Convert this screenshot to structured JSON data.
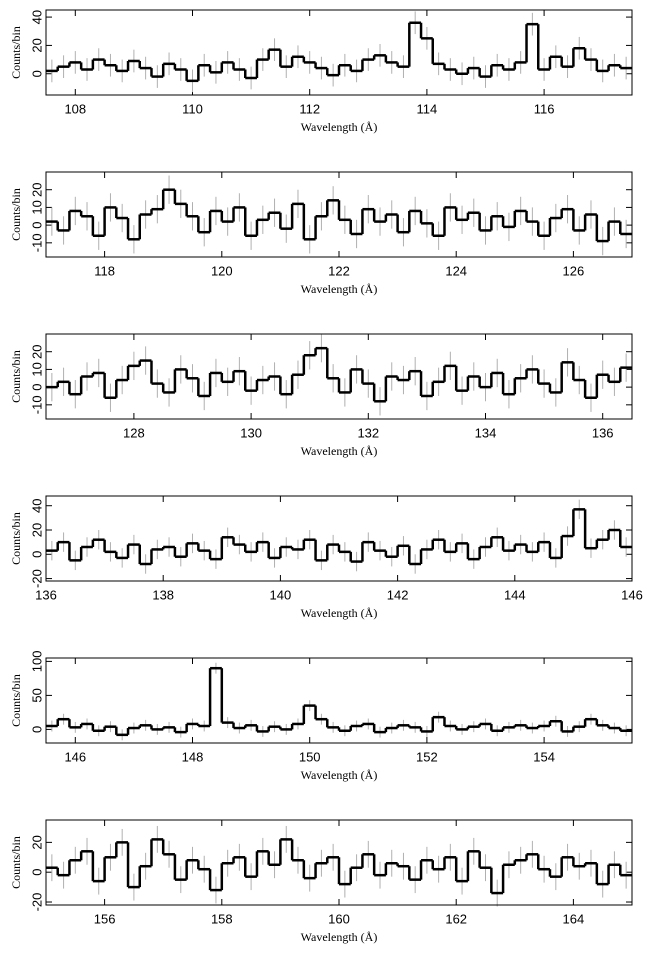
{
  "chart_data": [
    {
      "type": "step",
      "xlabel": "Wavelength (Å)",
      "ylabel": "Counts/bin",
      "color": "#000000",
      "error_color": "#b0b0b0",
      "xlim": [
        107.5,
        117.5
      ],
      "ylim": [
        -15,
        45
      ],
      "xticks": [
        108,
        110,
        112,
        114,
        116
      ],
      "yticks": [
        0,
        20,
        40
      ],
      "error": 8,
      "x": [
        107.5,
        107.7,
        107.9,
        108.1,
        108.3,
        108.5,
        108.7,
        108.9,
        109.1,
        109.3,
        109.5,
        109.7,
        109.9,
        110.1,
        110.3,
        110.5,
        110.7,
        110.9,
        111.1,
        111.3,
        111.5,
        111.7,
        111.9,
        112.1,
        112.3,
        112.5,
        112.7,
        112.9,
        113.1,
        113.3,
        113.5,
        113.7,
        113.9,
        114.1,
        114.3,
        114.5,
        114.7,
        114.9,
        115.1,
        115.3,
        115.5,
        115.7,
        115.9,
        116.1,
        116.3,
        116.5,
        116.7,
        116.9,
        117.1,
        117.3
      ],
      "values": [
        2,
        5,
        8,
        3,
        10,
        6,
        2,
        9,
        4,
        -2,
        7,
        3,
        -5,
        6,
        1,
        8,
        3,
        -3,
        10,
        17,
        5,
        12,
        8,
        4,
        -1,
        6,
        2,
        10,
        13,
        8,
        5,
        36,
        25,
        7,
        3,
        0,
        4,
        -2,
        6,
        3,
        8,
        35,
        3,
        12,
        5,
        18,
        10,
        2,
        6,
        4
      ]
    },
    {
      "type": "step",
      "xlabel": "Wavelength (Å)",
      "ylabel": "Counts/bin",
      "color": "#000000",
      "error_color": "#b0b0b0",
      "xlim": [
        117,
        127
      ],
      "ylim": [
        -18,
        30
      ],
      "xticks": [
        118,
        120,
        122,
        124,
        126
      ],
      "yticks": [
        -10,
        0,
        10,
        20
      ],
      "error": 8,
      "x": [
        117,
        117.2,
        117.4,
        117.6,
        117.8,
        118,
        118.2,
        118.4,
        118.6,
        118.8,
        119,
        119.2,
        119.4,
        119.6,
        119.8,
        120,
        120.2,
        120.4,
        120.6,
        120.8,
        121,
        121.2,
        121.4,
        121.6,
        121.8,
        122,
        122.2,
        122.4,
        122.6,
        122.8,
        123,
        123.2,
        123.4,
        123.6,
        123.8,
        124,
        124.2,
        124.4,
        124.6,
        124.8,
        125,
        125.2,
        125.4,
        125.6,
        125.8,
        126,
        126.2,
        126.4,
        126.6,
        126.8
      ],
      "values": [
        2,
        -3,
        8,
        5,
        -6,
        10,
        4,
        -8,
        6,
        9,
        20,
        12,
        5,
        -4,
        8,
        2,
        10,
        -6,
        3,
        7,
        -2,
        12,
        -8,
        5,
        14,
        3,
        -5,
        9,
        2,
        6,
        -4,
        8,
        1,
        -6,
        10,
        3,
        7,
        -3,
        5,
        -1,
        8,
        2,
        -6,
        4,
        9,
        -3,
        6,
        -9,
        2,
        -5
      ]
    },
    {
      "type": "step",
      "xlabel": "Wavelength (Å)",
      "ylabel": "Counts/bin",
      "color": "#000000",
      "error_color": "#b0b0b0",
      "xlim": [
        126.5,
        136.5
      ],
      "ylim": [
        -18,
        30
      ],
      "xticks": [
        128,
        130,
        132,
        134,
        136
      ],
      "yticks": [
        -10,
        0,
        10,
        20
      ],
      "error": 8,
      "x": [
        126.5,
        126.7,
        126.9,
        127.1,
        127.3,
        127.5,
        127.7,
        127.9,
        128.1,
        128.3,
        128.5,
        128.7,
        128.9,
        129.1,
        129.3,
        129.5,
        129.7,
        129.9,
        130.1,
        130.3,
        130.5,
        130.7,
        130.9,
        131.1,
        131.3,
        131.5,
        131.7,
        131.9,
        132.1,
        132.3,
        132.5,
        132.7,
        132.9,
        133.1,
        133.3,
        133.5,
        133.7,
        133.9,
        134.1,
        134.3,
        134.5,
        134.7,
        134.9,
        135.1,
        135.3,
        135.5,
        135.7,
        135.9,
        136.1,
        136.3
      ],
      "values": [
        0,
        3,
        -4,
        6,
        8,
        -6,
        4,
        12,
        15,
        2,
        -3,
        10,
        5,
        -5,
        8,
        3,
        9,
        -2,
        4,
        6,
        -4,
        7,
        18,
        22,
        5,
        -3,
        10,
        2,
        -8,
        6,
        4,
        9,
        -5,
        3,
        12,
        -2,
        6,
        0,
        8,
        -4,
        5,
        10,
        2,
        -3,
        14,
        4,
        -6,
        7,
        3,
        11
      ]
    },
    {
      "type": "step",
      "xlabel": "Wavelength (Å)",
      "ylabel": "Counts/bin",
      "color": "#000000",
      "error_color": "#b0b0b0",
      "xlim": [
        136,
        146
      ],
      "ylim": [
        -22,
        48
      ],
      "xticks": [
        136,
        138,
        140,
        142,
        144,
        146
      ],
      "yticks": [
        -20,
        0,
        20,
        40
      ],
      "error": 8,
      "x": [
        136,
        136.2,
        136.4,
        136.6,
        136.8,
        137,
        137.2,
        137.4,
        137.6,
        137.8,
        138,
        138.2,
        138.4,
        138.6,
        138.8,
        139,
        139.2,
        139.4,
        139.6,
        139.8,
        140,
        140.2,
        140.4,
        140.6,
        140.8,
        141,
        141.2,
        141.4,
        141.6,
        141.8,
        142,
        142.2,
        142.4,
        142.6,
        142.8,
        143,
        143.2,
        143.4,
        143.6,
        143.8,
        144,
        144.2,
        144.4,
        144.6,
        144.8,
        145,
        145.2,
        145.4,
        145.6,
        145.8
      ],
      "values": [
        3,
        10,
        -5,
        6,
        12,
        2,
        -3,
        8,
        -8,
        4,
        6,
        -2,
        9,
        3,
        -4,
        14,
        8,
        2,
        10,
        -3,
        6,
        4,
        12,
        -5,
        8,
        2,
        -6,
        10,
        3,
        -2,
        7,
        -8,
        4,
        12,
        2,
        9,
        -4,
        6,
        14,
        3,
        8,
        2,
        10,
        -3,
        15,
        37,
        5,
        12,
        20,
        6
      ]
    },
    {
      "type": "step",
      "xlabel": "Wavelength (Å)",
      "ylabel": "Counts/bin",
      "color": "#000000",
      "error_color": "#b0b0b0",
      "xlim": [
        145.5,
        155.5
      ],
      "ylim": [
        -20,
        105
      ],
      "xticks": [
        146,
        148,
        150,
        152,
        154
      ],
      "yticks": [
        0,
        50,
        100
      ],
      "error": 8,
      "x": [
        145.5,
        145.7,
        145.9,
        146.1,
        146.3,
        146.5,
        146.7,
        146.9,
        147.1,
        147.3,
        147.5,
        147.7,
        147.9,
        148.1,
        148.3,
        148.5,
        148.7,
        148.9,
        149.1,
        149.3,
        149.5,
        149.7,
        149.9,
        150.1,
        150.3,
        150.5,
        150.7,
        150.9,
        151.1,
        151.3,
        151.5,
        151.7,
        151.9,
        152.1,
        152.3,
        152.5,
        152.7,
        152.9,
        153.1,
        153.3,
        153.5,
        153.7,
        153.9,
        154.1,
        154.3,
        154.5,
        154.7,
        154.9,
        155.1,
        155.3
      ],
      "values": [
        5,
        15,
        3,
        8,
        -2,
        4,
        -8,
        2,
        6,
        0,
        3,
        -4,
        8,
        5,
        90,
        10,
        2,
        6,
        -3,
        4,
        0,
        8,
        35,
        15,
        3,
        -2,
        5,
        8,
        -4,
        2,
        6,
        3,
        -3,
        18,
        5,
        0,
        4,
        8,
        -2,
        3,
        6,
        2,
        5,
        12,
        -3,
        4,
        15,
        6,
        2,
        -2
      ]
    },
    {
      "type": "step",
      "xlabel": "Wavelength (Å)",
      "ylabel": "Counts/bin",
      "color": "#000000",
      "error_color": "#b0b0b0",
      "xlim": [
        155,
        165
      ],
      "ylim": [
        -22,
        35
      ],
      "xticks": [
        156,
        158,
        160,
        162,
        164
      ],
      "yticks": [
        -20,
        0,
        20
      ],
      "error": 9,
      "x": [
        155,
        155.2,
        155.4,
        155.6,
        155.8,
        156,
        156.2,
        156.4,
        156.6,
        156.8,
        157,
        157.2,
        157.4,
        157.6,
        157.8,
        158,
        158.2,
        158.4,
        158.6,
        158.8,
        159,
        159.2,
        159.4,
        159.6,
        159.8,
        160,
        160.2,
        160.4,
        160.6,
        160.8,
        161,
        161.2,
        161.4,
        161.6,
        161.8,
        162,
        162.2,
        162.4,
        162.6,
        162.8,
        163,
        163.2,
        163.4,
        163.6,
        163.8,
        164,
        164.2,
        164.4,
        164.6,
        164.8
      ],
      "values": [
        3,
        -2,
        8,
        14,
        -6,
        10,
        20,
        -10,
        4,
        22,
        12,
        -5,
        8,
        2,
        -12,
        6,
        10,
        -3,
        14,
        5,
        22,
        8,
        -4,
        6,
        10,
        -8,
        3,
        12,
        -2,
        6,
        4,
        -5,
        8,
        2,
        10,
        -6,
        14,
        3,
        -14,
        5,
        8,
        12,
        2,
        -3,
        10,
        4,
        6,
        -8,
        5,
        -2
      ]
    }
  ]
}
